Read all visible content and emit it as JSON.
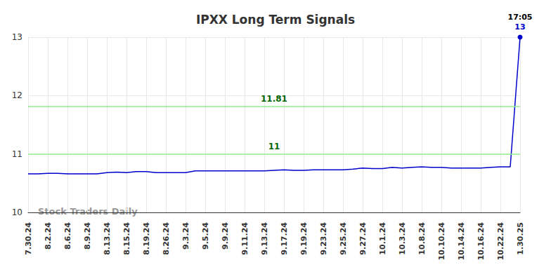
{
  "chart_data": {
    "type": "line",
    "title": "IPXX Long Term Signals",
    "categories": [
      "7.30.24",
      null,
      "8.2.24",
      null,
      "8.6.24",
      null,
      "8.9.24",
      null,
      "8.13.24",
      null,
      "8.15.24",
      null,
      "8.19.24",
      null,
      "8.26.24",
      null,
      "9.3.24",
      null,
      "9.5.24",
      null,
      "9.9.24",
      null,
      "9.11.24",
      null,
      "9.13.24",
      null,
      "9.17.24",
      null,
      "9.19.24",
      null,
      "9.23.24",
      null,
      "9.25.24",
      null,
      "9.27.24",
      null,
      "10.1.24",
      null,
      "10.3.24",
      null,
      "10.8.24",
      null,
      "10.10.24",
      null,
      "10.14.24",
      null,
      "10.16.24",
      null,
      "10.22.24",
      null,
      "1.30.25"
    ],
    "values": [
      10.66,
      10.66,
      10.67,
      10.67,
      10.66,
      10.66,
      10.66,
      10.66,
      10.68,
      10.69,
      10.68,
      10.7,
      10.7,
      10.68,
      10.68,
      10.68,
      10.68,
      10.71,
      10.71,
      10.71,
      10.71,
      10.71,
      10.71,
      10.71,
      10.71,
      10.72,
      10.73,
      10.72,
      10.72,
      10.73,
      10.73,
      10.73,
      10.73,
      10.74,
      10.76,
      10.75,
      10.75,
      10.77,
      10.76,
      10.77,
      10.78,
      10.77,
      10.77,
      10.76,
      10.76,
      10.76,
      10.76,
      10.77,
      10.78,
      10.78,
      13
    ],
    "color": "#0000cc",
    "reference_lines": [
      11.81,
      11
    ],
    "annotations": [
      "17:05"
    ],
    "watermark": "Stock Traders Daily",
    "ylim": [
      10,
      13
    ],
    "yticks": [
      10,
      11,
      12,
      13
    ],
    "grid": true
  }
}
